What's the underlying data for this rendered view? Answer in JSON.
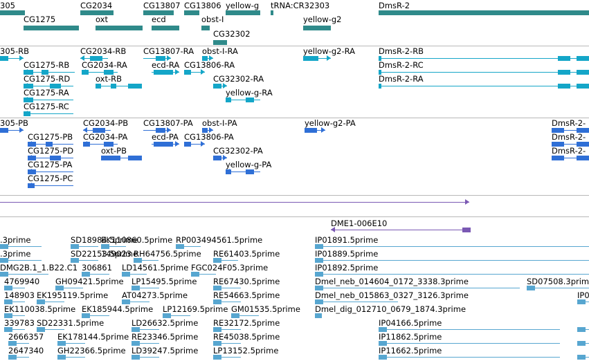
{
  "colors": {
    "gene": "#2f8a8a",
    "transcript": "#14a6c8",
    "protein": "#2f6fd6",
    "clone": "#7a58b3",
    "est": "#57a6d0",
    "separator": "#b8b8b8"
  },
  "tracks": {
    "genes": {
      "labels": [
        "305",
        "CG2034",
        "CG13807",
        "CG13806",
        "yellow-g",
        "tRNA:CR32303",
        "DmsR-2",
        "CG1275",
        "oxt",
        "ecd",
        "obst-I",
        "yellow-g2",
        "CG32302"
      ]
    },
    "transcripts": {
      "labels": [
        "305-RB",
        "CG2034-RB",
        "CG13807-RA",
        "obst-I-RA",
        "yellow-g2-RA",
        "DmsR-2-RB",
        "CG1275-RB",
        "CG2034-RA",
        "ecd-RA",
        "CG13806-RA",
        "DmsR-2-RC",
        "CG1275-RD",
        "oxt-RB",
        "CG32302-RA",
        "DmsR-2-RA",
        "CG1275-RA",
        "yellow-g-RA",
        "CG1275-RC"
      ]
    },
    "proteins": {
      "labels": [
        "305-PB",
        "CG2034-PB",
        "CG13807-PA",
        "obst-I-PA",
        "yellow-g2-PA",
        "DmsR-2-",
        "CG1275-PB",
        "CG2034-PA",
        "ecd-PA",
        "CG13806-PA",
        "DmsR-2-",
        "CG1275-PD",
        "oxt-PB",
        "CG32302-PA",
        "DmsR-2-",
        "CG1275-PA",
        "yellow-g-PA",
        "CG1275-PC"
      ]
    },
    "clones": {
      "labels": [
        "DME1-006E10"
      ]
    },
    "ests": {
      "labels": [
        ".3prime",
        "SD18984.5prime",
        "EK110860.5prime",
        "RP003494561.5prime",
        "IP01891.5prime",
        ".3prime",
        "SD22153.5prime",
        "149023",
        "RH64756.5prime",
        "RE61403.5prime",
        "IP01889.5prime",
        "DMG2B.1_1.B22.C1",
        "306861",
        "LD14561.5prime",
        "FGC024F05.3prime",
        "IP01892.5prime",
        "4769940",
        "GH09421.5prime",
        "LP15495.5prime",
        "RE67430.5prime",
        "Dmel_neb_014604_0172_3338.3prime",
        "SD07508.3prime",
        "148903",
        "EK195119.5prime",
        "AT04273.5prime",
        "RE54663.5prime",
        "Dmel_neb_015863_0327_3126.3prime",
        "IP0",
        "EK110038.5prime",
        "EK185944.5prime",
        "LP12169.5prime",
        "GM01535.5prime",
        "Dmel_dig_012710_0679_1874.3prime",
        "339783",
        "SD22331.5prime",
        "LD26632.5prime",
        "RE32172.5prime",
        "IP04166.5prime",
        "2666357",
        "EK178144.5prime",
        "RE23346.5prime",
        "RE45038.5prime",
        "IP11862.5prime",
        "2647340",
        "GH22366.5prime",
        "LD39247.5prime",
        "LP13152.5prime",
        "IP11662.5prime"
      ]
    }
  }
}
